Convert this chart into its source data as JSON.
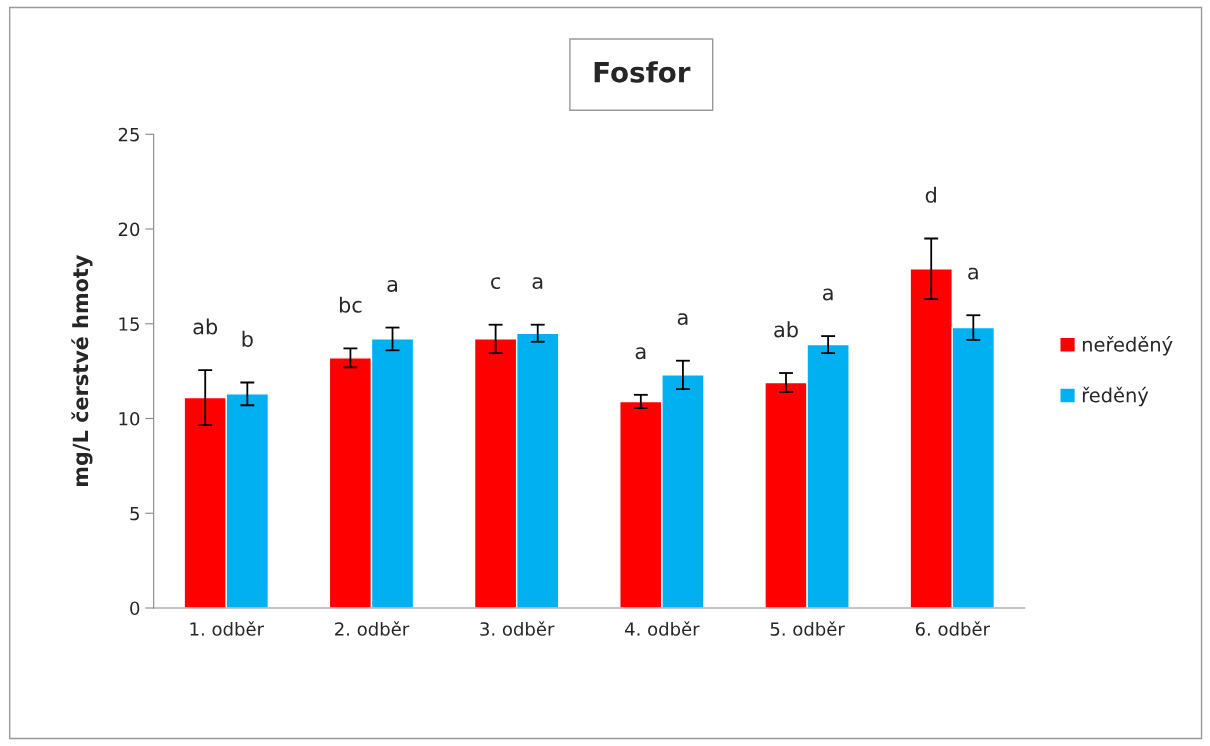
{
  "chart_data": {
    "type": "bar",
    "title": "Fosfor",
    "ylabel": "mg/L čerstvé hmoty",
    "categories": [
      "1. odběr",
      "2. odběr",
      "3. odběr",
      "4. odběr",
      "5. odběr",
      "6. odběr"
    ],
    "series": [
      {
        "name": "neředěný",
        "color": "#ff0000",
        "values": [
          11.1,
          13.2,
          14.2,
          10.9,
          11.9,
          17.9
        ],
        "errors": [
          1.45,
          0.5,
          0.75,
          0.35,
          0.5,
          1.6
        ]
      },
      {
        "name": "ředěný",
        "color": "#00b0f0",
        "values": [
          11.3,
          14.2,
          14.5,
          12.3,
          13.9,
          14.8
        ],
        "errors": [
          0.6,
          0.6,
          0.45,
          0.75,
          0.45,
          0.65
        ]
      }
    ],
    "ylim": [
      0,
      25
    ],
    "yticks": [
      0,
      5,
      10,
      15,
      20,
      25
    ],
    "grid": false,
    "legend": "right",
    "annotations": [
      "ab",
      "b",
      "bc",
      "a",
      "c",
      "a",
      "a",
      "a",
      "ab",
      "a",
      "d",
      "a"
    ]
  }
}
